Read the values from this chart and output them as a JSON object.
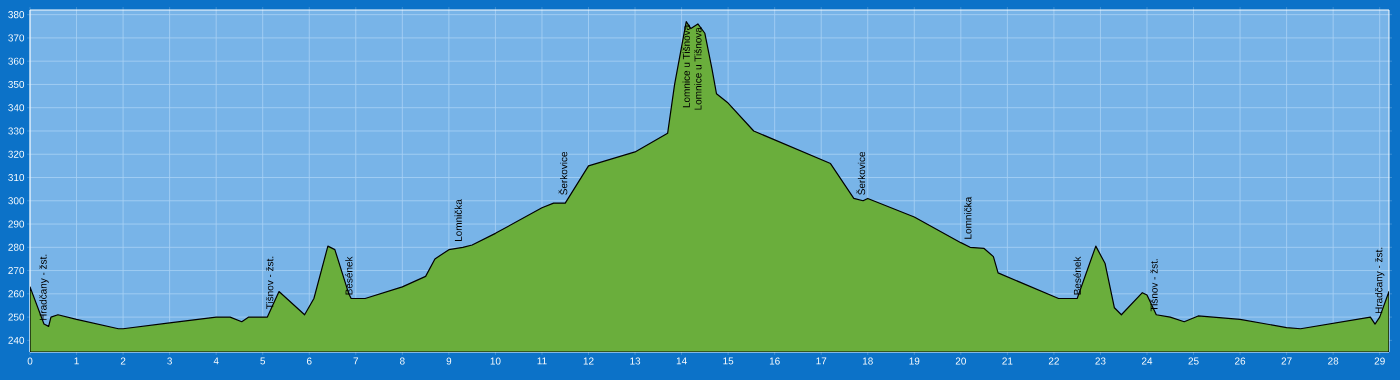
{
  "chart_data": {
    "type": "area",
    "color": "#6aae3c",
    "x": [
      0,
      0.3,
      0.4,
      0.45,
      0.6,
      1,
      1.9,
      2,
      3,
      4,
      4.3,
      4.55,
      4.7,
      5.1,
      5.35,
      5.9,
      6.1,
      6.4,
      6.55,
      6.85,
      6.9,
      7.2,
      8,
      8.5,
      8.7,
      9,
      9.3,
      9.5,
      10,
      11,
      11.25,
      11.5,
      12,
      13,
      13.7,
      13.85,
      14.1,
      14.2,
      14.35,
      14.5,
      14.65,
      14.75,
      15,
      15.55,
      17.2,
      17.7,
      17.9,
      18,
      19,
      20,
      20.2,
      20.5,
      20.7,
      20.8,
      22.1,
      22.5,
      22.9,
      23.1,
      23.3,
      23.45,
      23.9,
      24,
      24.2,
      24.5,
      24.8,
      25.1,
      26,
      27,
      27.3,
      28.8,
      28.9,
      29,
      29.2
    ],
    "values": [
      263,
      247,
      246,
      250,
      251,
      249,
      245,
      245,
      247.5,
      250,
      250,
      248,
      250,
      250,
      261,
      251,
      258,
      280.5,
      279,
      260,
      258,
      258,
      263,
      267.5,
      275,
      279,
      280,
      281,
      286,
      297,
      299,
      299,
      315,
      321,
      329,
      350,
      377,
      374,
      376,
      372,
      357,
      346,
      342,
      330,
      316,
      301,
      300,
      301,
      293,
      282,
      280,
      279.5,
      276,
      269,
      258,
      258,
      280.5,
      273,
      254,
      251,
      260.5,
      259.5,
      251,
      250,
      248,
      250.5,
      249,
      245.5,
      245,
      250,
      247,
      250,
      261
    ],
    "xlim": [
      0,
      29.2
    ],
    "ylim": [
      235,
      382
    ],
    "xticks": [
      0,
      1,
      2,
      3,
      4,
      5,
      6,
      7,
      8,
      9,
      10,
      11,
      12,
      13,
      14,
      15,
      16,
      17,
      18,
      19,
      20,
      21,
      22,
      23,
      24,
      25,
      26,
      27,
      28,
      29
    ],
    "yticks": [
      240,
      250,
      260,
      270,
      280,
      290,
      300,
      310,
      320,
      330,
      340,
      350,
      360,
      370,
      380
    ],
    "grid": true,
    "annotations": [
      {
        "text": "Hradčany - žst.",
        "x": 0.3,
        "y": 247
      },
      {
        "text": "Tišnov - žst.",
        "x": 5.15,
        "y": 252
      },
      {
        "text": "Besének",
        "x": 6.85,
        "y": 258
      },
      {
        "text": "Lomnička",
        "x": 9.2,
        "y": 281
      },
      {
        "text": "Šerkovice",
        "x": 11.45,
        "y": 301
      },
      {
        "text": "Lomnice u Tišnova",
        "x": 14.1,
        "y": 377
      },
      {
        "text": "Lomnice u Tišnova",
        "x": 14.35,
        "y": 376
      },
      {
        "text": "Šerkovice",
        "x": 17.85,
        "y": 301
      },
      {
        "text": "Lomnička",
        "x": 20.15,
        "y": 282
      },
      {
        "text": "Besének",
        "x": 22.5,
        "y": 258
      },
      {
        "text": "Tišnov - žst.",
        "x": 24.15,
        "y": 251
      },
      {
        "text": "Hradčany - žst.",
        "x": 29,
        "y": 250
      }
    ]
  }
}
